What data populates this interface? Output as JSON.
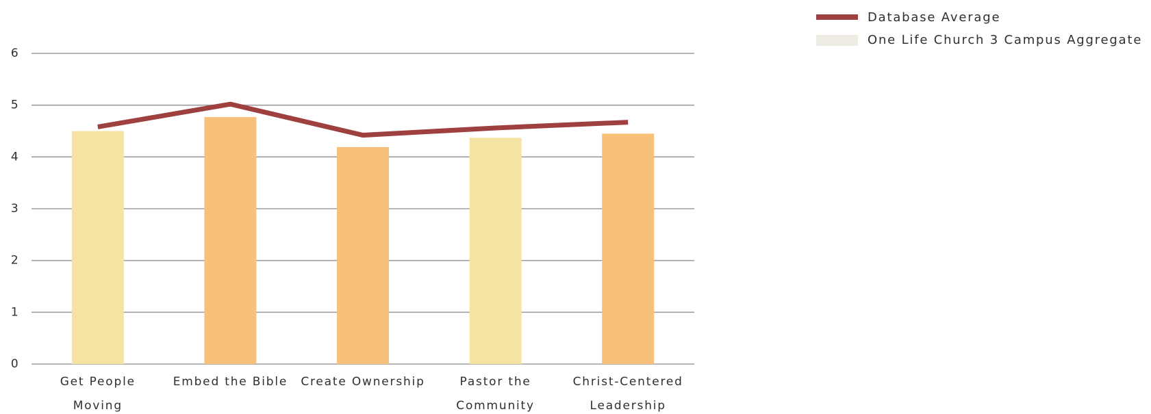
{
  "chart_data": {
    "type": "bar",
    "categories": [
      [
        "Get People",
        "Moving"
      ],
      [
        "Embed the Bible"
      ],
      [
        "Create Ownership"
      ],
      [
        "Pastor the",
        "Community"
      ],
      [
        "Christ-Centered",
        "Leadership"
      ]
    ],
    "series": [
      {
        "name": "One Life Church 3 Campus Aggregate",
        "type": "bar",
        "values": [
          4.5,
          4.77,
          4.19,
          4.37,
          4.45
        ],
        "colors": [
          "#f4e3a3",
          "#f7c17b",
          "#f7c17b",
          "#f4e3a3",
          "#f7c17b"
        ],
        "legend_color": "#efede3"
      },
      {
        "name": "Database Average",
        "type": "line",
        "values": [
          4.58,
          5.02,
          4.42,
          4.56,
          4.67
        ],
        "color": "#9e4040"
      }
    ],
    "yticks": [
      0,
      1,
      2,
      3,
      4,
      5,
      6
    ],
    "ylim": [
      0,
      6
    ],
    "grid": true,
    "legend_position": "top-right"
  }
}
